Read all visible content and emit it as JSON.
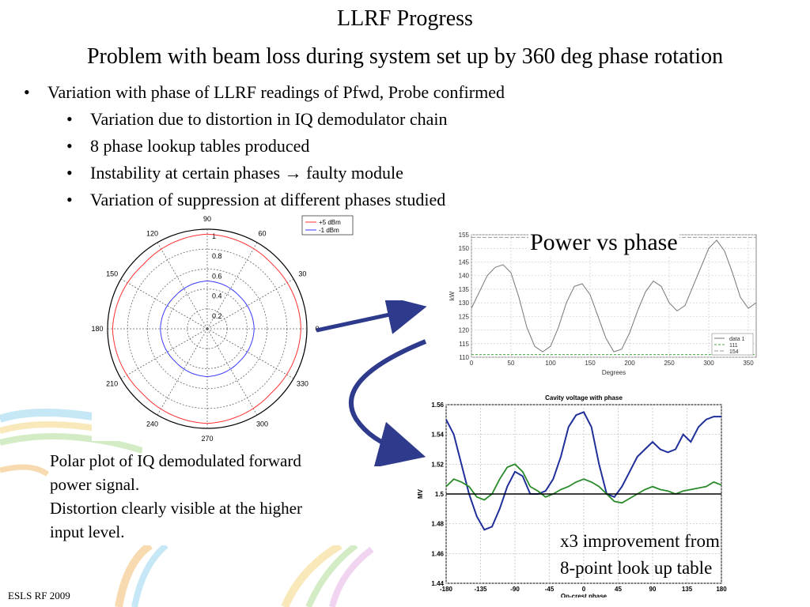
{
  "slide": {
    "title": "LLRF Progress",
    "subtitle": "Problem with beam loss during system set up by 360 deg phase rotation",
    "footer": "ESLS RF 2009",
    "bullets": [
      {
        "text": "Variation with phase of LLRF readings of Pfwd, Probe confirmed",
        "level": 1
      },
      {
        "text": "Variation due to distortion in IQ demodulator chain",
        "level": 2
      },
      {
        "text": "8 phase lookup tables produced",
        "level": 2
      },
      {
        "text": "Instability at certain phases → faulty module",
        "level": 2
      },
      {
        "text": "Variation of suppression at different phases studied",
        "level": 2
      }
    ],
    "bullet_char": "•",
    "caption_lines": [
      "Polar plot of IQ demodulated forward",
      "power signal.",
      "Distortion clearly visible at the higher",
      "input level."
    ],
    "improvement_lines": [
      "x3 improvement from",
      "8-point look up table"
    ],
    "power_label": "Power vs phase",
    "colors": {
      "arrow": "#2e3a8c",
      "red": "#ff3030",
      "blue": "#3a3aff",
      "darkblue": "#1f2f9a",
      "green": "#2a8a2a"
    }
  },
  "chart_data": [
    {
      "type": "polar",
      "angle_ticks": [
        "90",
        "60",
        "30",
        "0",
        "330",
        "300",
        "270",
        "240",
        "210",
        "180",
        "150",
        "120"
      ],
      "radial_ticks": [
        "0.2",
        "0.4",
        "0.6",
        "0.8",
        "1"
      ],
      "rlim": [
        0,
        1
      ],
      "legend": [
        "+5 dBm",
        "-1 dBm"
      ],
      "legend_position": "top-right",
      "series": [
        {
          "name": "+5 dBm",
          "r_deg": [
            [
              0,
              0.94
            ],
            [
              45,
              0.92
            ],
            [
              90,
              0.95
            ],
            [
              135,
              0.91
            ],
            [
              180,
              0.95
            ],
            [
              225,
              0.92
            ],
            [
              270,
              0.95
            ],
            [
              315,
              0.91
            ]
          ]
        },
        {
          "name": "-1 dBm",
          "r_deg": [
            [
              0,
              0.47
            ],
            [
              45,
              0.46
            ],
            [
              90,
              0.48
            ],
            [
              135,
              0.46
            ],
            [
              180,
              0.47
            ],
            [
              225,
              0.46
            ],
            [
              270,
              0.48
            ],
            [
              315,
              0.46
            ]
          ]
        }
      ]
    },
    {
      "type": "line",
      "xlabel": "Degrees",
      "ylabel": "kW",
      "xlim": [
        0,
        360
      ],
      "ylim": [
        110,
        155
      ],
      "xticks": [
        "0",
        "50",
        "100",
        "150",
        "200",
        "250",
        "300",
        "350"
      ],
      "yticks": [
        "110",
        "115",
        "120",
        "125",
        "130",
        "135",
        "140",
        "145",
        "150",
        "155"
      ],
      "legend": [
        "data 1",
        "111",
        "154"
      ],
      "legend_position": "bottom-right",
      "series": [
        {
          "name": "data 1",
          "x": [
            0,
            10,
            20,
            30,
            40,
            50,
            60,
            70,
            80,
            90,
            100,
            110,
            120,
            130,
            140,
            150,
            160,
            170,
            180,
            190,
            200,
            210,
            220,
            230,
            240,
            250,
            260,
            270,
            280,
            290,
            300,
            310,
            320,
            330,
            340,
            350,
            360
          ],
          "y": [
            128,
            134,
            140,
            143,
            144,
            141,
            132,
            121,
            114,
            112,
            114,
            121,
            130,
            136,
            137,
            133,
            125,
            117,
            112,
            113,
            119,
            127,
            134,
            138,
            136,
            130,
            127,
            129,
            136,
            143,
            150,
            153,
            149,
            141,
            132,
            128,
            130
          ]
        },
        {
          "name": "111",
          "x": [
            0,
            360
          ],
          "y": [
            111,
            111
          ]
        },
        {
          "name": "154",
          "x": [
            0,
            360
          ],
          "y": [
            154,
            154
          ]
        }
      ],
      "grid": true
    },
    {
      "type": "line",
      "title": "Cavity voltage with phase",
      "xlabel": "On-crest phase",
      "ylabel": "MV",
      "xlim": [
        -180,
        180
      ],
      "ylim": [
        1.44,
        1.56
      ],
      "xticks": [
        "-180",
        "-135",
        "-90",
        "-45",
        "0",
        "45",
        "90",
        "135",
        "180"
      ],
      "yticks": [
        "1.44",
        "1.46",
        "1.48",
        "1.5",
        "1.52",
        "1.54",
        "1.56"
      ],
      "series": [
        {
          "name": "blue",
          "x": [
            -180,
            -170,
            -160,
            -150,
            -140,
            -130,
            -120,
            -110,
            -100,
            -90,
            -80,
            -70,
            -60,
            -50,
            -40,
            -30,
            -20,
            -10,
            0,
            10,
            20,
            30,
            40,
            50,
            60,
            70,
            80,
            90,
            100,
            110,
            120,
            130,
            140,
            150,
            160,
            170,
            180
          ],
          "y": [
            1.55,
            1.54,
            1.52,
            1.5,
            1.485,
            1.476,
            1.478,
            1.49,
            1.505,
            1.515,
            1.512,
            1.5,
            1.5,
            1.502,
            1.51,
            1.525,
            1.545,
            1.553,
            1.555,
            1.545,
            1.52,
            1.5,
            1.498,
            1.505,
            1.515,
            1.525,
            1.53,
            1.535,
            1.53,
            1.528,
            1.53,
            1.54,
            1.535,
            1.545,
            1.55,
            1.552,
            1.552
          ]
        },
        {
          "name": "green",
          "x": [
            -180,
            -170,
            -160,
            -150,
            -140,
            -130,
            -120,
            -110,
            -100,
            -90,
            -80,
            -70,
            -60,
            -50,
            -40,
            -30,
            -20,
            -10,
            0,
            10,
            20,
            30,
            40,
            50,
            60,
            70,
            80,
            90,
            100,
            110,
            120,
            130,
            140,
            150,
            160,
            170,
            180
          ],
          "y": [
            1.505,
            1.51,
            1.508,
            1.505,
            1.498,
            1.496,
            1.5,
            1.51,
            1.518,
            1.52,
            1.515,
            1.505,
            1.502,
            1.498,
            1.5,
            1.503,
            1.505,
            1.508,
            1.51,
            1.508,
            1.505,
            1.5,
            1.495,
            1.494,
            1.497,
            1.5,
            1.503,
            1.505,
            1.503,
            1.502,
            1.5,
            1.502,
            1.503,
            1.504,
            1.505,
            1.508,
            1.506
          ]
        },
        {
          "name": "ref",
          "x": [
            -180,
            180
          ],
          "y": [
            1.5,
            1.5
          ]
        }
      ],
      "grid": true
    }
  ]
}
